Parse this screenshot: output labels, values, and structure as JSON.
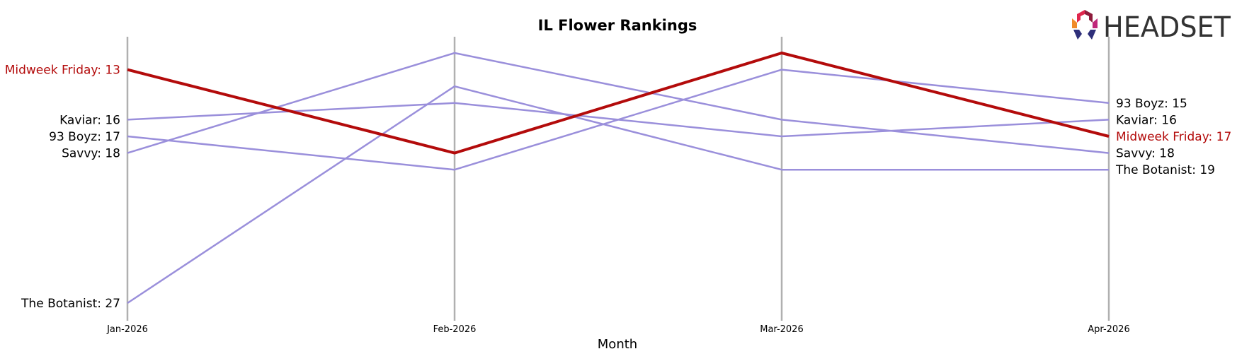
{
  "chart_data": {
    "type": "line",
    "title": "IL Flower Rankings",
    "xlabel": "Month",
    "ylabel": "",
    "x": [
      "Jan-2026",
      "Feb-2026",
      "Mar-2026",
      "Apr-2026"
    ],
    "y_inverted": true,
    "ylim": [
      28,
      12
    ],
    "grid": false,
    "highlight_series": "Midweek Friday",
    "colors": {
      "highlight": "#b30b0b",
      "others": "#9a8fdb",
      "axis": "#b0b0b0"
    },
    "series": [
      {
        "name": "Midweek Friday",
        "values": [
          13,
          18,
          12,
          17
        ],
        "highlight": true
      },
      {
        "name": "Kaviar",
        "values": [
          16,
          15,
          17,
          16
        ]
      },
      {
        "name": "93 Boyz",
        "values": [
          17,
          19,
          13,
          15
        ]
      },
      {
        "name": "Savvy",
        "values": [
          18,
          12,
          16,
          18
        ]
      },
      {
        "name": "The Botanist",
        "values": [
          27,
          14,
          19,
          19
        ]
      }
    ],
    "left_labels": [
      {
        "series": "Midweek Friday",
        "text": "Midweek Friday: 13",
        "value": 13
      },
      {
        "series": "Kaviar",
        "text": "Kaviar: 16",
        "value": 16
      },
      {
        "series": "93 Boyz",
        "text": "93 Boyz: 17",
        "value": 17
      },
      {
        "series": "Savvy",
        "text": "Savvy: 18",
        "value": 18
      },
      {
        "series": "The Botanist",
        "text": "The Botanist: 27",
        "value": 27
      }
    ],
    "right_labels": [
      {
        "series": "93 Boyz",
        "text": "93 Boyz: 15",
        "value": 15
      },
      {
        "series": "Kaviar",
        "text": "Kaviar: 16",
        "value": 16
      },
      {
        "series": "Midweek Friday",
        "text": "Midweek Friday: 17",
        "value": 17
      },
      {
        "series": "Savvy",
        "text": "Savvy: 18",
        "value": 18
      },
      {
        "series": "The Botanist",
        "text": "The Botanist: 19",
        "value": 19
      }
    ]
  },
  "logo": {
    "text": "HEADSET"
  }
}
